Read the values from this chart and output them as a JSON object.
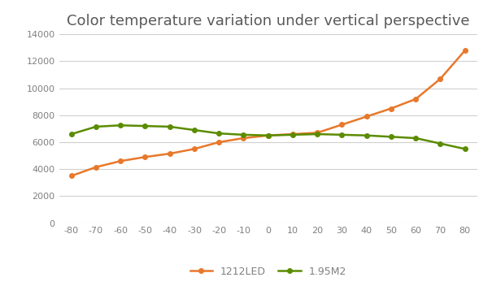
{
  "title": "Color temperature variation under vertical perspective",
  "x_values": [
    -80,
    -70,
    -60,
    -50,
    -40,
    -30,
    -20,
    -10,
    0,
    10,
    20,
    30,
    40,
    50,
    60,
    70,
    80
  ],
  "led_1212": [
    3500,
    4150,
    4600,
    4900,
    5150,
    5500,
    6000,
    6300,
    6500,
    6600,
    6700,
    7300,
    7900,
    8500,
    9200,
    10700,
    12800
  ],
  "m2_195": [
    6600,
    7150,
    7250,
    7200,
    7150,
    6900,
    6650,
    6550,
    6500,
    6550,
    6600,
    6550,
    6500,
    6400,
    6300,
    5900,
    5500
  ],
  "color_led": "#E8782A",
  "color_m2": "#5B8C00",
  "marker": "o",
  "marker_size": 4,
  "line_width": 1.8,
  "ylim": [
    0,
    14000
  ],
  "yticks": [
    0,
    2000,
    4000,
    6000,
    8000,
    10000,
    12000,
    14000
  ],
  "legend_labels": [
    "1212LED",
    "1.95M2"
  ],
  "bg_color": "#FFFFFF",
  "grid_color": "#D0D0D0",
  "title_fontsize": 13,
  "title_color": "#595959",
  "tick_color": "#808080",
  "tick_fontsize": 8
}
